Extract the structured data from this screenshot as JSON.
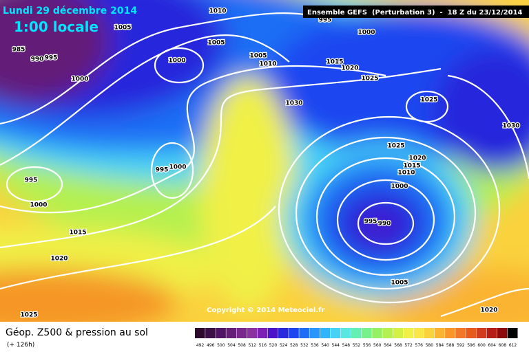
{
  "header": {
    "title": "Lundi 29 décembre 2014",
    "time": "1:00 locale",
    "run": "Ensemble GEFS  (Perturbation 3)  -  18 Z du 23/12/2014"
  },
  "map": {
    "isobar_labels": [
      1010,
      1005,
      1005,
      985,
      990,
      995,
      1000,
      1000,
      1005,
      1010,
      1015,
      1020,
      1000,
      995,
      1025,
      1030,
      1025,
      1030,
      1025,
      1020,
      1015,
      1010,
      1000,
      995,
      1000,
      995,
      1000,
      995,
      990,
      1015,
      1020,
      1005,
      1020,
      1025
    ]
  },
  "copyright": "Copyright © 2014 Meteociel.fr",
  "footer": {
    "title": "Géop. Z500 & pression au sol",
    "lead": "(+ 126h)"
  },
  "legend": {
    "levels": [
      492,
      496,
      500,
      504,
      508,
      512,
      516,
      520,
      524,
      528,
      532,
      536,
      540,
      544,
      548,
      552,
      556,
      560,
      564,
      568,
      572,
      576,
      580,
      584,
      588,
      592,
      596,
      600,
      604,
      608,
      612
    ],
    "colors": [
      "#2d0a2d",
      "#3c0f46",
      "#501464",
      "#641e78",
      "#78288c",
      "#8c32a0",
      "#7d1eb4",
      "#4b14c8",
      "#2828dc",
      "#1e46f0",
      "#1e6ef5",
      "#2896fa",
      "#32b4fa",
      "#46d2f5",
      "#5ae6e1",
      "#64f0b4",
      "#78f08c",
      "#96f064",
      "#b4f050",
      "#d2f046",
      "#f0f046",
      "#fae646",
      "#fad23c",
      "#fab432",
      "#fa9628",
      "#f07828",
      "#e65a1e",
      "#d23c1e",
      "#b41e14",
      "#8c0a0a",
      "#000000"
    ]
  }
}
